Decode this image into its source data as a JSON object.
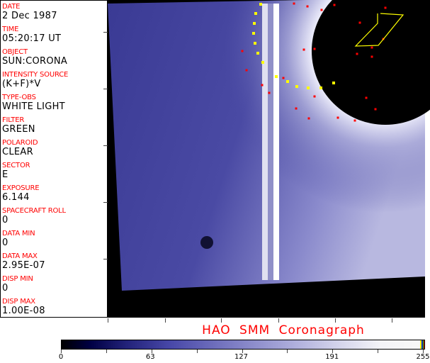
{
  "fields": [
    {
      "label": "DATE",
      "value": "2 Dec 1987"
    },
    {
      "label": "TIME",
      "value": "05:20:17 UT"
    },
    {
      "label": "OBJECT",
      "value": "SUN:CORONA"
    },
    {
      "label": "INTENSITY SOURCE",
      "value": "(K+F)*V"
    },
    {
      "label": "TYPE-OBS",
      "value": "WHITE LIGHT"
    },
    {
      "label": "FILTER",
      "value": "GREEN"
    },
    {
      "label": "POLAROID",
      "value": "CLEAR"
    },
    {
      "label": "SECTOR",
      "value": "E"
    },
    {
      "label": "EXPOSURE",
      "value": "6.144"
    },
    {
      "label": "SPACECRAFT ROLL",
      "value": "0"
    },
    {
      "label": "DATA MIN",
      "value": "0"
    },
    {
      "label": "DATA MAX",
      "value": "2.95E-07"
    },
    {
      "label": "DISP MIN",
      "value": "0"
    },
    {
      "label": "DISP MAX",
      "value": "1.00E-08"
    }
  ],
  "title": "HAO  SMM Coronagraph",
  "colorbar": {
    "ticks": [
      "0",
      "63",
      "127",
      "191",
      "255"
    ],
    "range": [
      0,
      255
    ],
    "colors": {
      "low": "#000000",
      "mid": "#7676c0",
      "high": "#f8f8f8"
    }
  },
  "colors": {
    "label": "#ff0000",
    "overlay_yellow": "#ffff00",
    "overlay_red": "#ff0000"
  }
}
